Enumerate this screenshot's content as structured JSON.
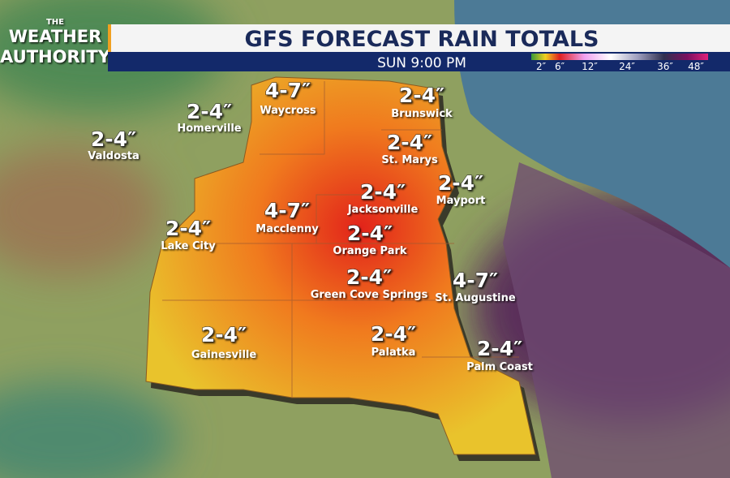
{
  "logo": {
    "line1": "THE",
    "line2": "WEATHER",
    "line3": "AUTHORITY"
  },
  "header": {
    "title": "GFS FORECAST RAIN TOTALS",
    "time": "SUN 9:00 PM"
  },
  "legend": {
    "labels": [
      "2″",
      "6″",
      "12″",
      "24″",
      "36″",
      "48″"
    ]
  },
  "cities": [
    {
      "amount": "4-7″",
      "name": "Waycross"
    },
    {
      "amount": "2-4″",
      "name": "Homerville"
    },
    {
      "amount": "2-4″",
      "name": "Brunswick"
    },
    {
      "amount": "2-4″",
      "name": "Valdosta"
    },
    {
      "amount": "2-4″",
      "name": "St. Marys"
    },
    {
      "amount": "2-4″",
      "name": "Mayport"
    },
    {
      "amount": "2-4″",
      "name": "Jacksonville"
    },
    {
      "amount": "4-7″",
      "name": "Macclenny"
    },
    {
      "amount": "2-4″",
      "name": "Lake City"
    },
    {
      "amount": "2-4″",
      "name": "Orange Park"
    },
    {
      "amount": "2-4″",
      "name": "Green Cove Springs"
    },
    {
      "amount": "4-7″",
      "name": "St. Augustine"
    },
    {
      "amount": "2-4″",
      "name": "Gainesville"
    },
    {
      "amount": "2-4″",
      "name": "Palatka"
    },
    {
      "amount": "2-4″",
      "name": "Palm Coast"
    }
  ]
}
